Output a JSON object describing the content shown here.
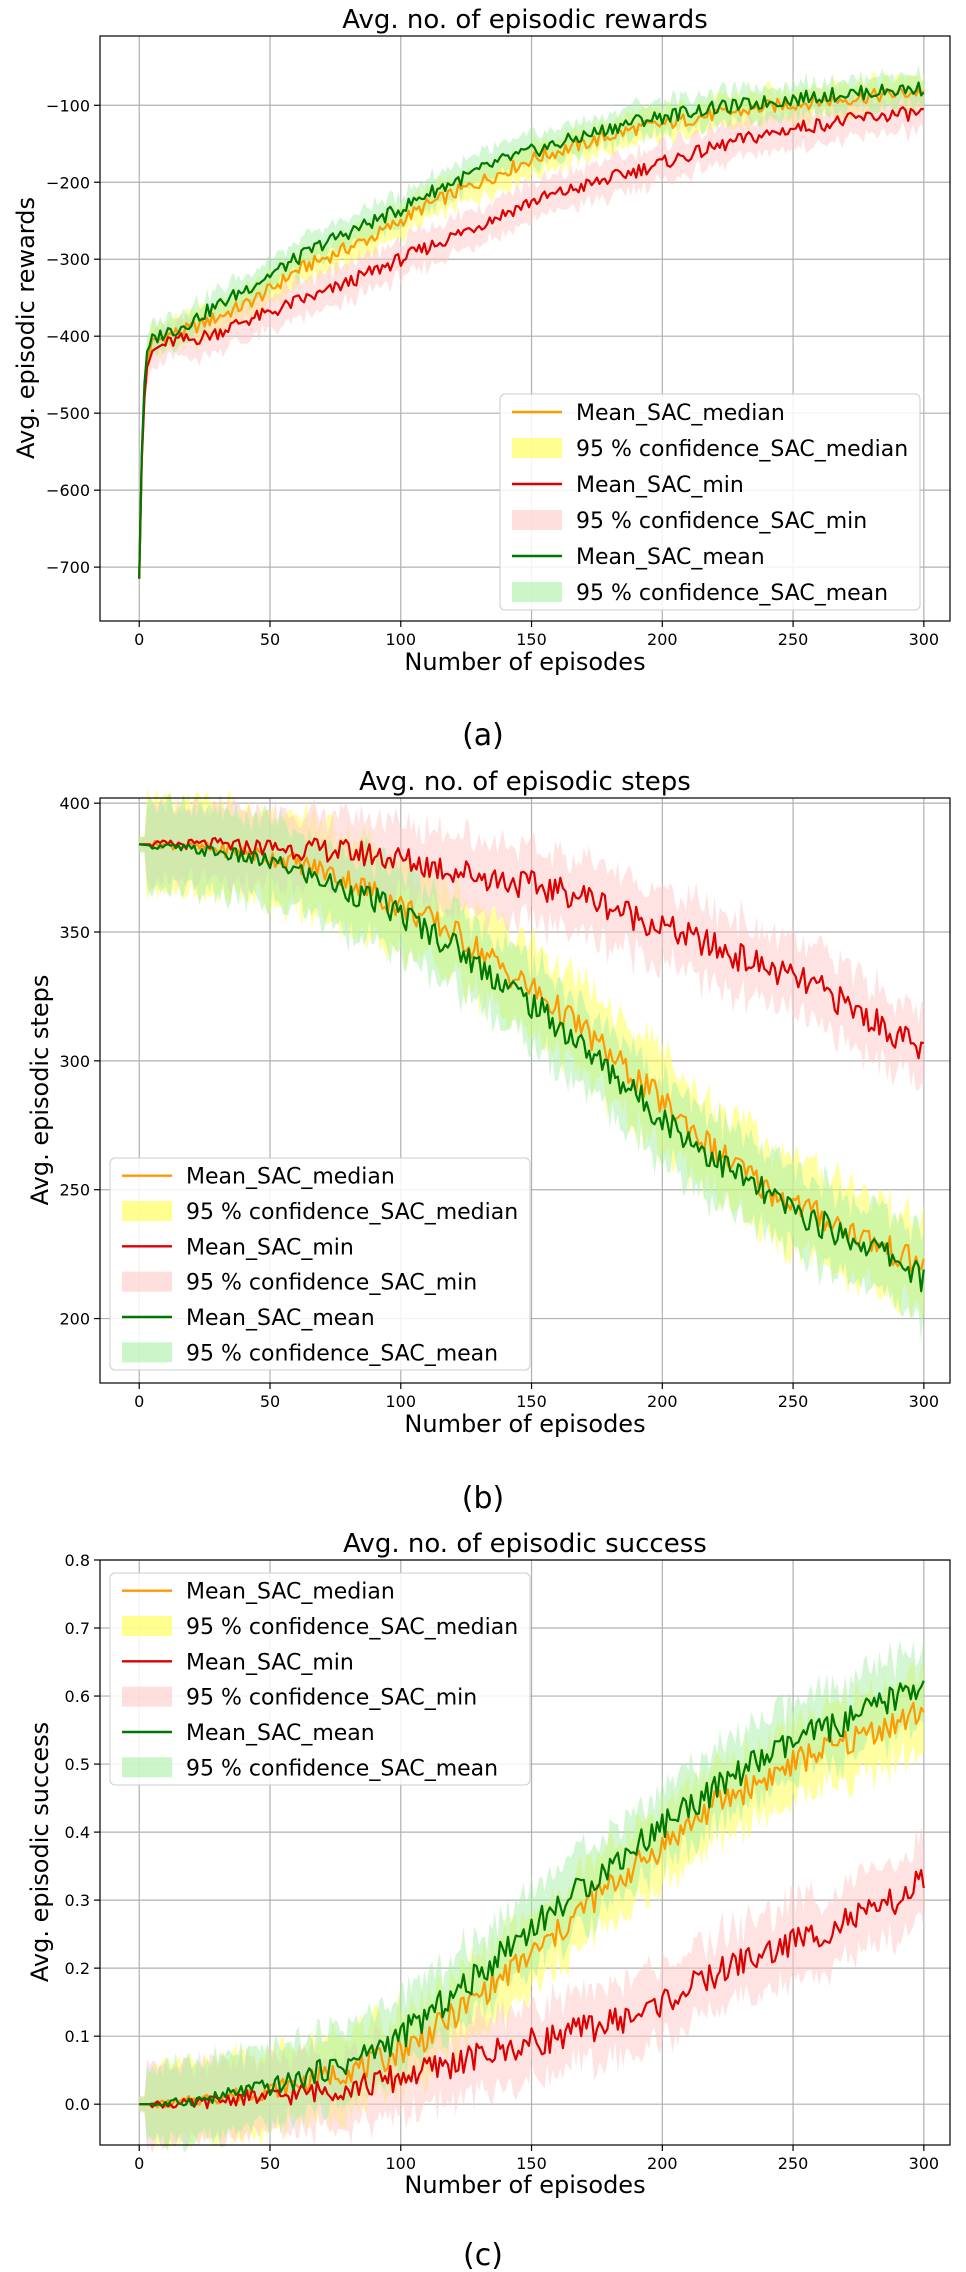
{
  "chart_data": [
    {
      "type": "line",
      "title": "Avg. no. of episodic rewards",
      "xlabel": "Number of episodes",
      "ylabel": "Avg. episodic rewards",
      "xlim": [
        -15,
        310
      ],
      "ylim": [
        -770,
        -10
      ],
      "xticks": [
        0,
        50,
        100,
        150,
        200,
        250,
        300
      ],
      "yticks": [
        -700,
        -600,
        -500,
        -400,
        -300,
        -200,
        -100
      ],
      "grid": true,
      "legend_position": "lower-right",
      "legend": [
        "Mean_SAC_median",
        "95 % confidence_SAC_median",
        "Mean_SAC_min",
        "95 % confidence_SAC_min",
        "Mean_SAC_mean",
        "95 % confidence_SAC_mean"
      ],
      "x": [
        0,
        1,
        2,
        3,
        5,
        10,
        15,
        20,
        30,
        40,
        50,
        60,
        70,
        80,
        90,
        100,
        110,
        120,
        130,
        140,
        150,
        160,
        170,
        180,
        190,
        200,
        210,
        220,
        230,
        240,
        250,
        260,
        270,
        280,
        290,
        300
      ],
      "series": [
        {
          "name": "Mean_SAC_median",
          "values": [
            -715,
            -560,
            -470,
            -430,
            -410,
            -400,
            -395,
            -390,
            -375,
            -360,
            -340,
            -315,
            -300,
            -285,
            -270,
            -250,
            -230,
            -215,
            -200,
            -185,
            -170,
            -160,
            -150,
            -140,
            -130,
            -125,
            -118,
            -112,
            -108,
            -102,
            -98,
            -95,
            -92,
            -88,
            -85,
            -82
          ],
          "band": 25
        },
        {
          "name": "Mean_SAC_min",
          "values": [
            -715,
            -560,
            -480,
            -440,
            -420,
            -410,
            -405,
            -405,
            -395,
            -380,
            -370,
            -355,
            -345,
            -330,
            -315,
            -300,
            -285,
            -270,
            -255,
            -240,
            -225,
            -215,
            -205,
            -195,
            -185,
            -175,
            -165,
            -155,
            -145,
            -138,
            -130,
            -125,
            -120,
            -115,
            -112,
            -110
          ],
          "band": 30
        },
        {
          "name": "Mean_SAC_mean",
          "values": [
            -715,
            -550,
            -460,
            -420,
            -405,
            -395,
            -390,
            -380,
            -360,
            -340,
            -320,
            -300,
            -280,
            -265,
            -250,
            -235,
            -215,
            -200,
            -185,
            -170,
            -160,
            -150,
            -140,
            -130,
            -120,
            -115,
            -108,
            -104,
            -100,
            -96,
            -92,
            -88,
            -85,
            -83,
            -80,
            -78
          ],
          "band": 25
        }
      ]
    },
    {
      "type": "line",
      "title": "Avg. no. of episodic steps",
      "xlabel": "Number of episodes",
      "ylabel": "Avg. episodic steps",
      "xlim": [
        -15,
        310
      ],
      "ylim": [
        175,
        402
      ],
      "xticks": [
        0,
        50,
        100,
        150,
        200,
        250,
        300
      ],
      "yticks": [
        200,
        250,
        300,
        350,
        400
      ],
      "grid": true,
      "legend_position": "lower-left",
      "legend": [
        "Mean_SAC_median",
        "95 % confidence_SAC_median",
        "Mean_SAC_min",
        "95 % confidence_SAC_min",
        "Mean_SAC_mean",
        "95 % confidence_SAC_mean"
      ],
      "x": [
        0,
        10,
        20,
        30,
        40,
        50,
        60,
        70,
        80,
        90,
        100,
        110,
        120,
        130,
        140,
        150,
        160,
        170,
        180,
        190,
        200,
        210,
        220,
        230,
        240,
        250,
        260,
        270,
        280,
        290,
        300
      ],
      "series": [
        {
          "name": "Mean_SAC_median",
          "values": [
            384,
            384,
            383,
            382,
            381,
            379,
            377,
            374,
            370,
            365,
            360,
            355,
            350,
            343,
            335,
            328,
            320,
            312,
            302,
            293,
            284,
            275,
            265,
            258,
            250,
            245,
            240,
            235,
            230,
            225,
            220
          ],
          "band": 22
        },
        {
          "name": "Mean_SAC_min",
          "values": [
            384,
            384,
            384,
            384,
            383,
            383,
            382,
            382,
            381,
            380,
            378,
            376,
            374,
            372,
            370,
            368,
            366,
            364,
            360,
            356,
            352,
            348,
            344,
            340,
            336,
            332,
            328,
            322,
            316,
            310,
            303
          ],
          "band": 18
        },
        {
          "name": "Mean_SAC_mean",
          "values": [
            384,
            383,
            382,
            381,
            379,
            377,
            374,
            370,
            366,
            362,
            357,
            351,
            345,
            337,
            330,
            322,
            314,
            305,
            296,
            287,
            278,
            270,
            262,
            255,
            248,
            242,
            237,
            232,
            228,
            223,
            215
          ],
          "band": 20
        }
      ]
    },
    {
      "type": "line",
      "title": "Avg. no. of episodic success",
      "xlabel": "Number of episodes",
      "ylabel": "Avg. episodic success",
      "xlim": [
        -15,
        310
      ],
      "ylim": [
        -0.06,
        0.8
      ],
      "xticks": [
        0,
        50,
        100,
        150,
        200,
        250,
        300
      ],
      "yticks": [
        0.0,
        0.1,
        0.2,
        0.3,
        0.4,
        0.5,
        0.6,
        0.7,
        0.8
      ],
      "grid": true,
      "legend_position": "upper-left",
      "legend": [
        "Mean_SAC_median",
        "95 % confidence_SAC_median",
        "Mean_SAC_min",
        "95 % confidence_SAC_min",
        "Mean_SAC_mean",
        "95 % confidence_SAC_mean"
      ],
      "x": [
        0,
        10,
        20,
        30,
        40,
        50,
        60,
        70,
        80,
        90,
        100,
        110,
        120,
        130,
        140,
        150,
        160,
        170,
        180,
        190,
        200,
        210,
        220,
        230,
        240,
        250,
        260,
        270,
        280,
        290,
        300
      ],
      "series": [
        {
          "name": "Mean_SAC_median",
          "values": [
            0.0,
            0.0,
            0.005,
            0.01,
            0.015,
            0.02,
            0.03,
            0.04,
            0.05,
            0.06,
            0.08,
            0.1,
            0.13,
            0.16,
            0.19,
            0.22,
            0.25,
            0.29,
            0.32,
            0.35,
            0.38,
            0.41,
            0.44,
            0.46,
            0.48,
            0.5,
            0.52,
            0.53,
            0.55,
            0.56,
            0.58
          ],
          "band": 0.07
        },
        {
          "name": "Mean_SAC_min",
          "values": [
            0.0,
            0.0,
            0.0,
            0.005,
            0.01,
            0.01,
            0.015,
            0.02,
            0.025,
            0.03,
            0.04,
            0.05,
            0.06,
            0.07,
            0.08,
            0.09,
            0.1,
            0.11,
            0.12,
            0.13,
            0.15,
            0.17,
            0.19,
            0.21,
            0.22,
            0.24,
            0.25,
            0.27,
            0.28,
            0.3,
            0.33
          ],
          "band": 0.07
        },
        {
          "name": "Mean_SAC_mean",
          "values": [
            0.0,
            0.0,
            0.005,
            0.01,
            0.02,
            0.025,
            0.035,
            0.05,
            0.06,
            0.08,
            0.1,
            0.13,
            0.16,
            0.19,
            0.23,
            0.26,
            0.29,
            0.32,
            0.35,
            0.38,
            0.41,
            0.44,
            0.46,
            0.49,
            0.51,
            0.53,
            0.55,
            0.56,
            0.58,
            0.6,
            0.62
          ],
          "band": 0.07
        }
      ]
    }
  ],
  "captions": [
    "(a)",
    "(b)",
    "(c)"
  ],
  "colors": {
    "median_line": "#ff9900",
    "median_band": "#ffff55",
    "min_line": "#dd0000",
    "min_band": "#ffc8c8",
    "mean_line": "#007700",
    "mean_band": "#a6f0a6"
  }
}
